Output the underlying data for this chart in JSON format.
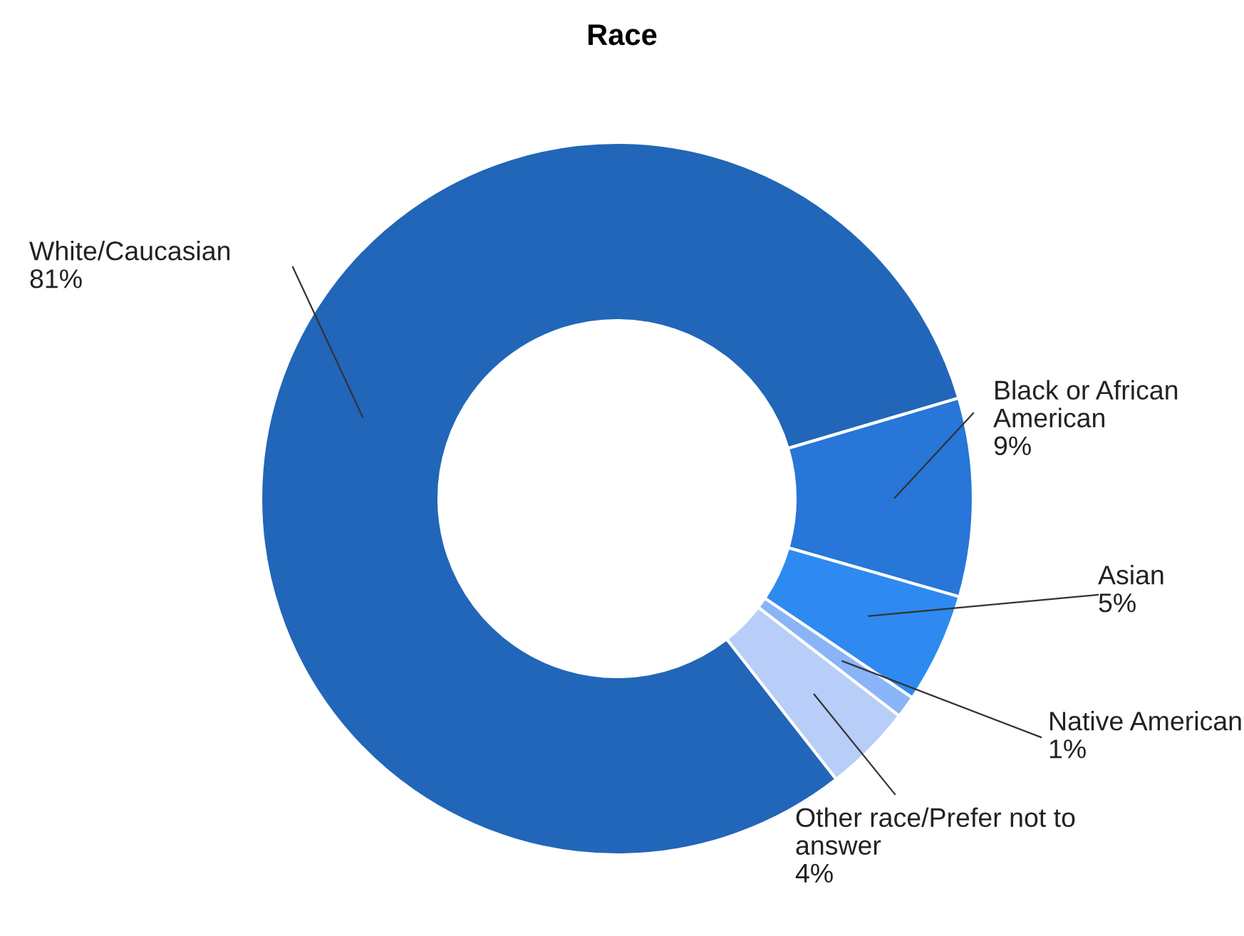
{
  "chart_data": {
    "type": "donut",
    "title": "Race",
    "categories": [
      "White/Caucasian",
      "Black or African American",
      "Asian",
      "Native American",
      "Other race/Prefer not to answer"
    ],
    "values": [
      81,
      9,
      5,
      1,
      4
    ],
    "value_labels": [
      "81%",
      "9%",
      "5%",
      "1%",
      "4%"
    ],
    "colors": [
      "#2166b8",
      "#2776d8",
      "#2e8af0",
      "#8ab4f8",
      "#b8cdf8"
    ],
    "legend": false
  }
}
